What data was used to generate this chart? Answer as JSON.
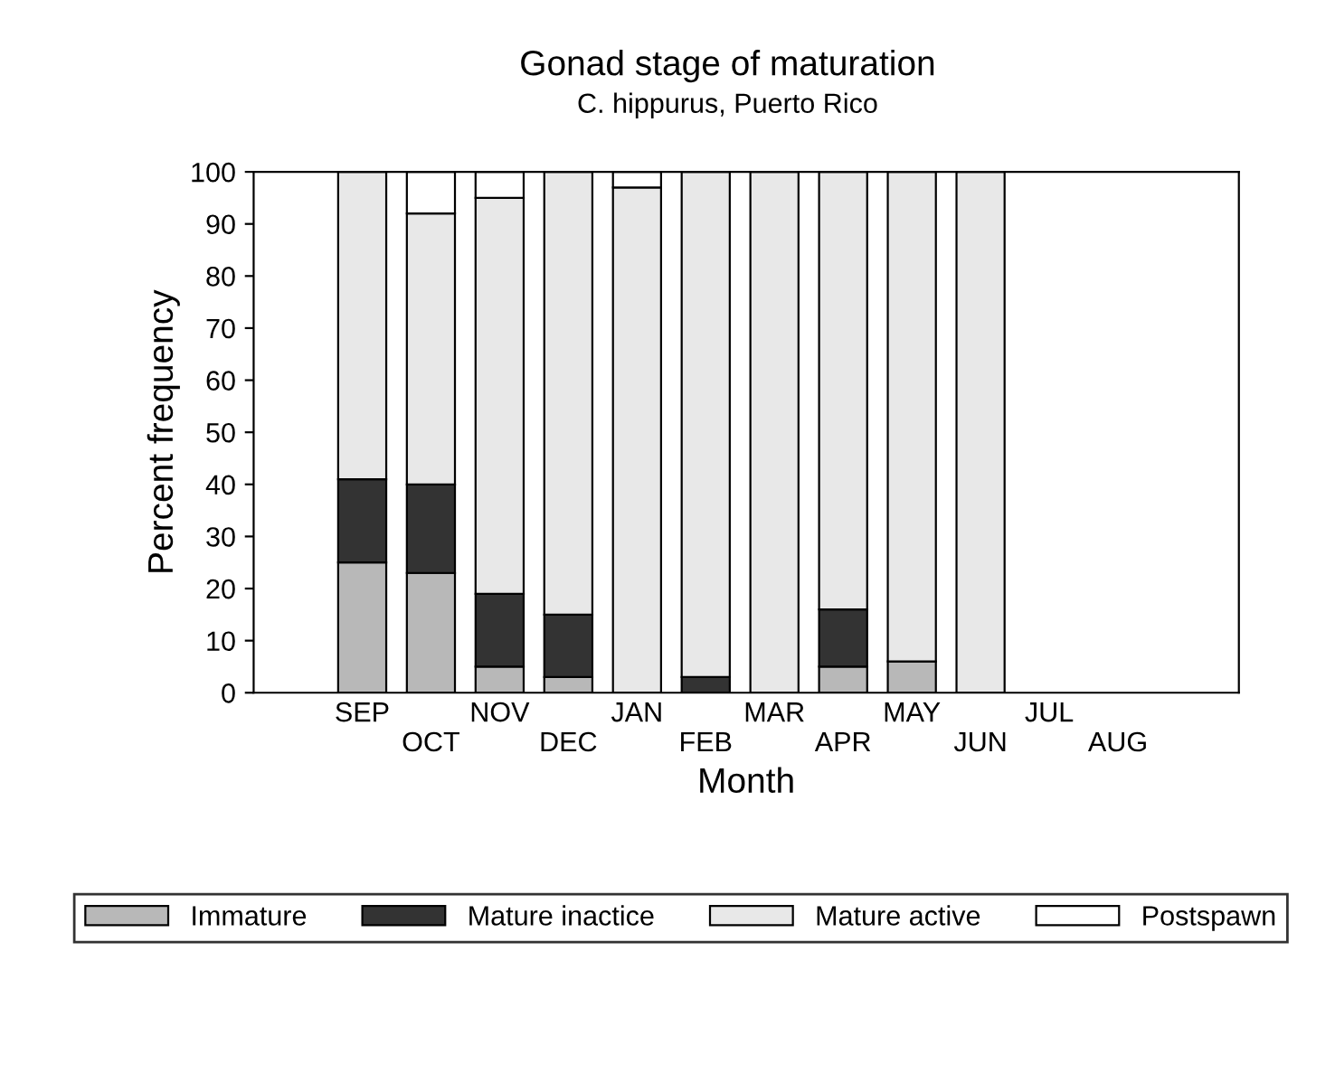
{
  "chart_data": {
    "type": "bar",
    "title": "Gonad stage of maturation",
    "subtitle": "C. hippurus, Puerto Rico",
    "xlabel": "Month",
    "ylabel": "Percent frequency",
    "categories": [
      "SEP",
      "OCT",
      "NOV",
      "DEC",
      "JAN",
      "FEB",
      "MAR",
      "APR",
      "MAY",
      "JUN",
      "JUL",
      "AUG"
    ],
    "stacked": true,
    "series": [
      {
        "name": "Immature",
        "color": "#b8b8b8",
        "values": [
          25,
          23,
          5,
          3,
          0,
          0,
          0,
          5,
          6,
          0,
          null,
          null
        ]
      },
      {
        "name": "Mature inactice",
        "color": "#333333",
        "values": [
          16,
          17,
          14,
          12,
          0,
          3,
          0,
          11,
          0,
          0,
          null,
          null
        ]
      },
      {
        "name": "Mature active",
        "color": "#e8e8e8",
        "values": [
          59,
          52,
          76,
          85,
          97,
          97,
          100,
          84,
          94,
          100,
          null,
          null
        ]
      },
      {
        "name": "Postspawn",
        "color": "#ffffff",
        "values": [
          0,
          8,
          5,
          0,
          3,
          0,
          0,
          0,
          0,
          0,
          null,
          null
        ]
      }
    ],
    "ylim": [
      0,
      100
    ],
    "yticks": [
      0,
      10,
      20,
      30,
      40,
      50,
      60,
      70,
      80,
      90,
      100
    ],
    "grid": false,
    "legend": "bottom"
  }
}
